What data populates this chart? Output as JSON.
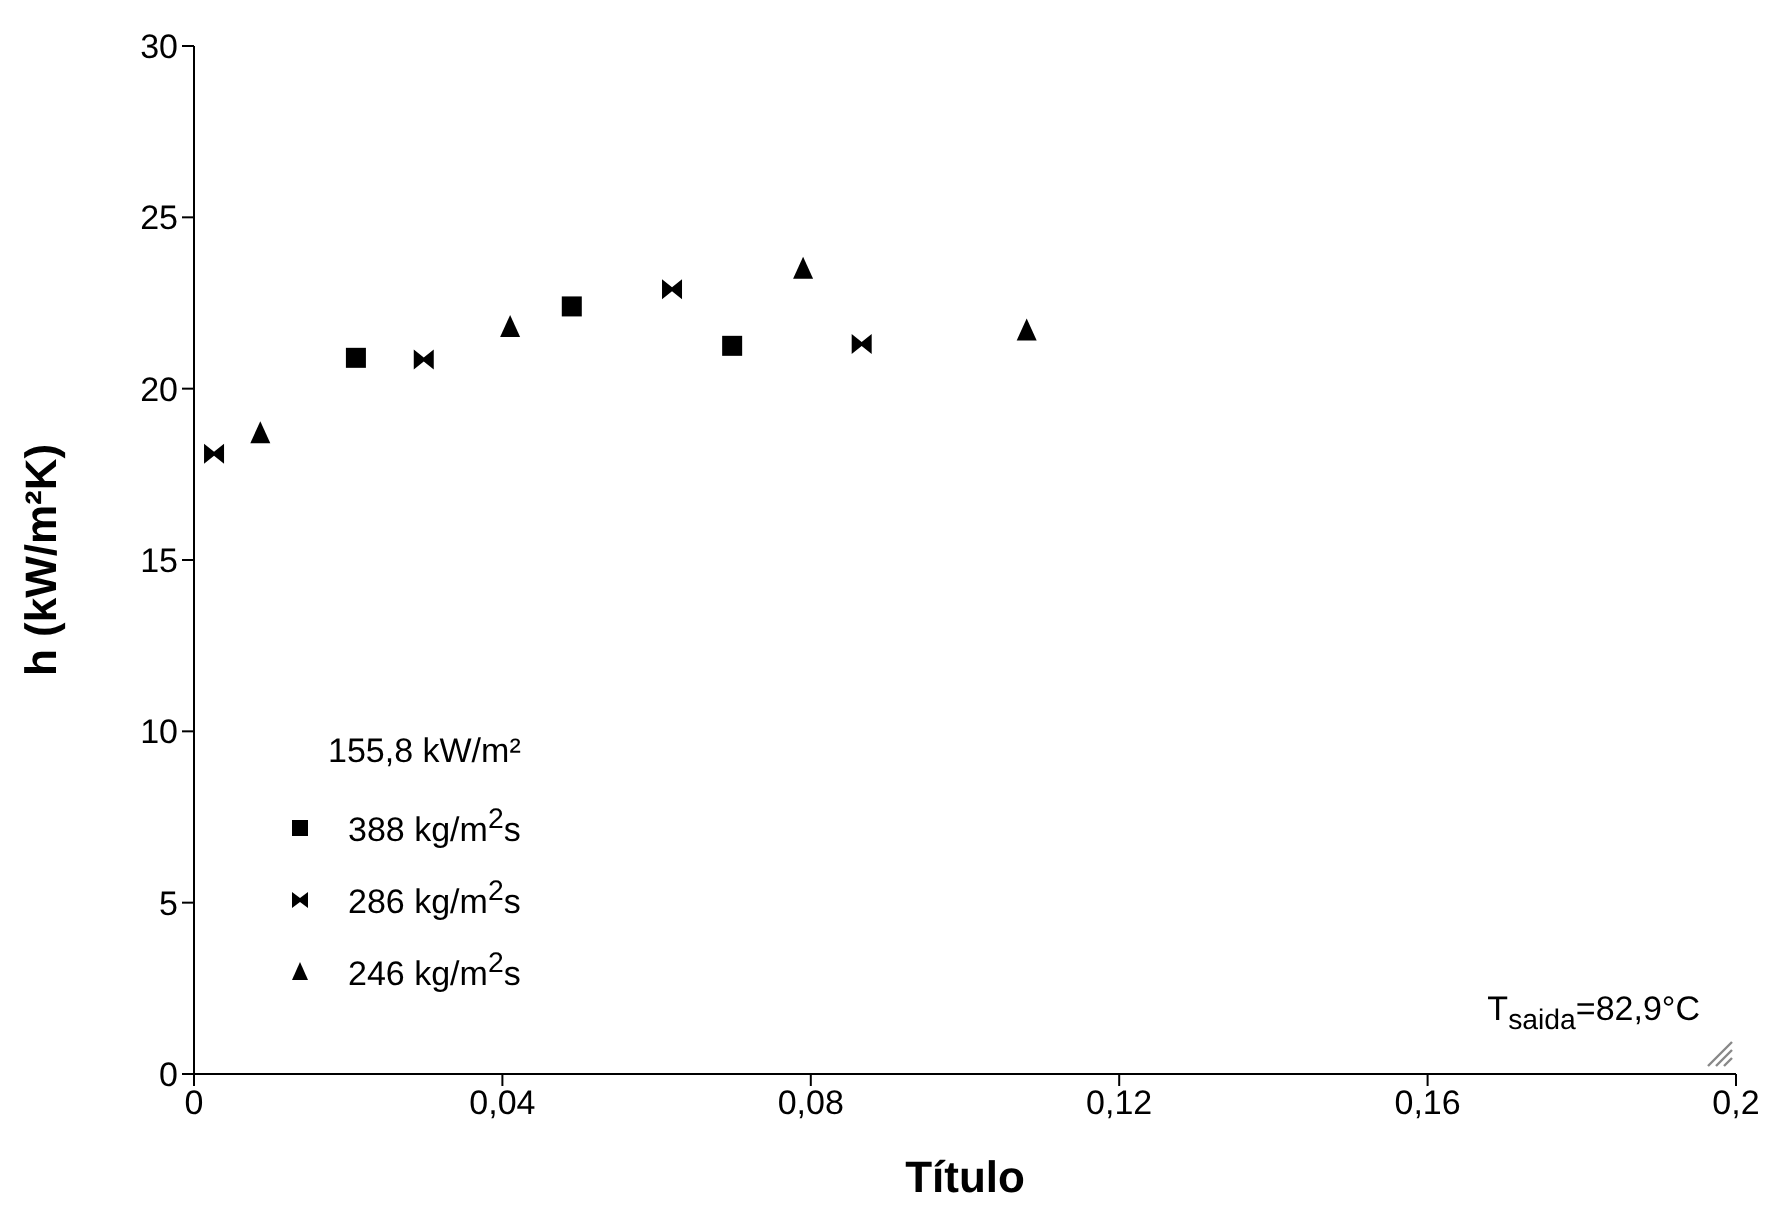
{
  "chart_data": {
    "type": "scatter",
    "xlabel": "Título",
    "ylabel": "h (kW/m²K)",
    "legend_title": "155,8 kW/m²",
    "legend": "bottom left",
    "grid": false,
    "xlim": [
      0,
      0.2
    ],
    "xticks": [
      0,
      {
        "value": 0.04,
        "label": "0,04"
      },
      {
        "value": 0.08,
        "label": "0,08"
      },
      {
        "value": 0.12,
        "label": "0,12"
      },
      {
        "value": 0.16,
        "label": "0,16"
      },
      {
        "value": 0.2,
        "label": "0,2"
      }
    ],
    "ylim": [
      0,
      30
    ],
    "yticks": [
      0,
      5,
      10,
      15,
      20,
      25,
      30
    ],
    "series": [
      {
        "name": "388 kg/m$^{2}$s",
        "color": "#000000",
        "marker": "square",
        "x": [
          0.021,
          0.049,
          0.0698
        ],
        "values": [
          20.9,
          22.4,
          21.25
        ]
      },
      {
        "name": "286 kg/m$^{2}$s",
        "color": "#000000",
        "x": [
          0.0026,
          0.0298,
          0.062,
          0.0866
        ],
        "values": [
          18.1,
          20.85,
          22.9,
          21.3
        ]
      },
      {
        "name": "246 kg/m$^{2}$s",
        "color": "#000000",
        "marker": "triangle",
        "x": [
          0.0086,
          0.041,
          0.079,
          0.108
        ],
        "values": [
          18.7,
          21.8,
          23.5,
          21.7
        ]
      }
    ],
    "annotations": [
      "T$_{saida}$=82,9°C"
    ]
  }
}
